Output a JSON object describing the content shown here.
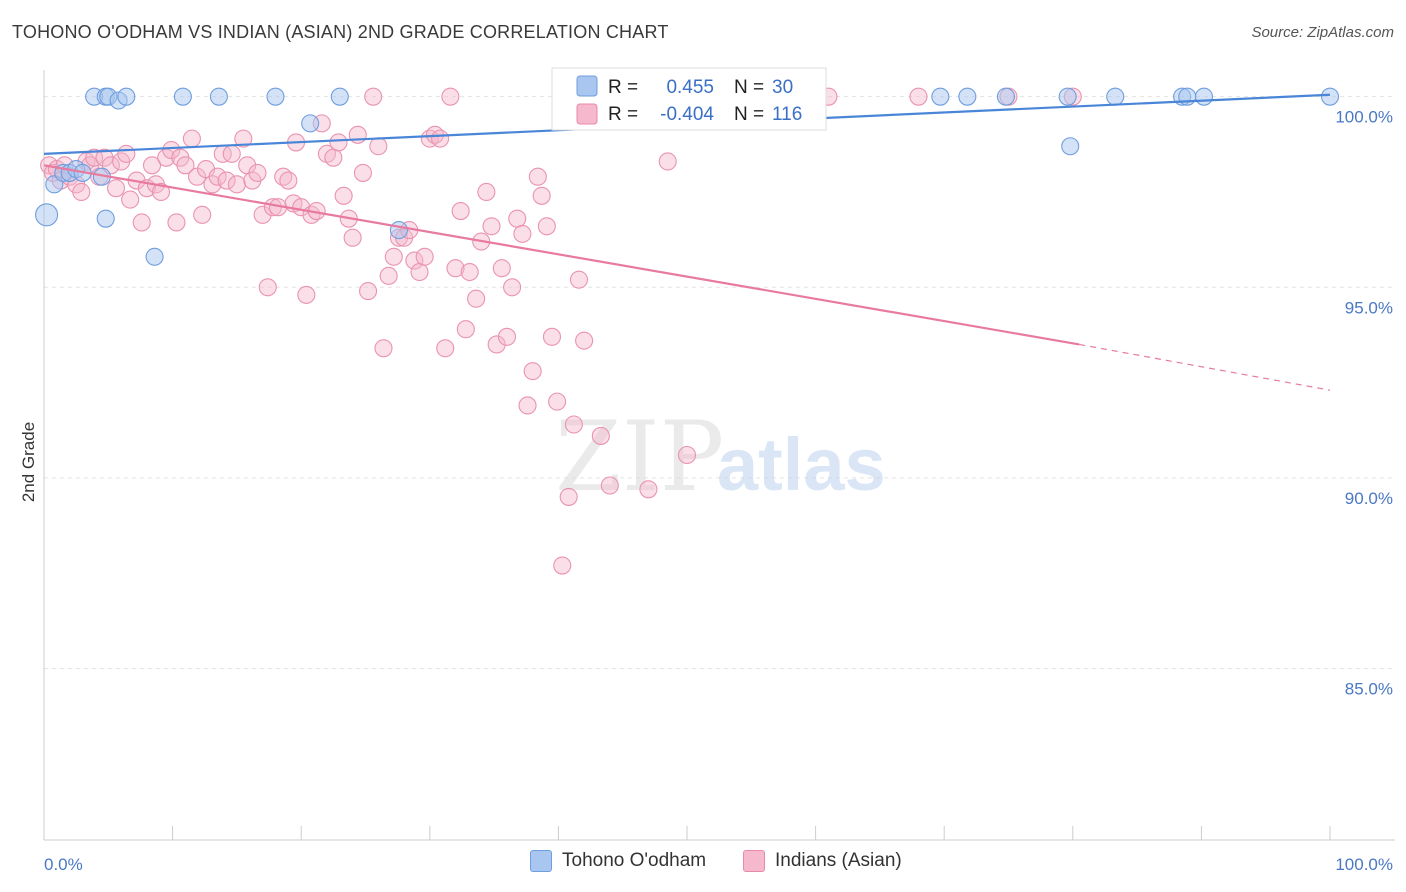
{
  "header": {
    "title": "TOHONO O'ODHAM VS INDIAN (ASIAN) 2ND GRADE CORRELATION CHART",
    "source": "Source: ZipAtlas.com"
  },
  "legend_box": {
    "rows": [
      {
        "r_label": "R =",
        "r_value": "0.455",
        "n_label": "N =",
        "n_value": "30"
      },
      {
        "r_label": "R =",
        "r_value": "-0.404",
        "n_label": "N =",
        "n_value": "116"
      }
    ]
  },
  "watermark": {
    "zip": "ZIP",
    "atlas": "atlas"
  },
  "bottom_legend": [
    {
      "label": "Tohono O'odham",
      "color": "#a8c6f0"
    },
    {
      "label": "Indians (Asian)",
      "color": "#f5b8cc"
    }
  ],
  "chart_data": {
    "type": "scatter",
    "title": "TOHONO O'ODHAM VS INDIAN (ASIAN) 2ND GRADE CORRELATION CHART",
    "xlabel": "",
    "ylabel": "2nd Grade",
    "xlim": [
      0,
      100
    ],
    "ylim": [
      80.5,
      100.7
    ],
    "x_ticks": [
      {
        "value": 0,
        "label": "0.0%"
      },
      {
        "value": 100,
        "label": "100.0%"
      }
    ],
    "y_ticks": [
      {
        "value": 100,
        "label": "100.0%"
      },
      {
        "value": 95,
        "label": "95.0%"
      },
      {
        "value": 90,
        "label": "90.0%"
      },
      {
        "value": 85,
        "label": "85.0%"
      }
    ],
    "grid": true,
    "colors": {
      "series1": "#4a86d8",
      "series2": "#e87aa0"
    },
    "series": [
      {
        "name": "Tohono O'odham",
        "r": 0.455,
        "n": 30,
        "trend": {
          "x": [
            0,
            100
          ],
          "y": [
            98.5,
            100.05
          ]
        },
        "points": [
          [
            0.2,
            96.9
          ],
          [
            0.8,
            97.7
          ],
          [
            1.5,
            98
          ],
          [
            2.0,
            98
          ],
          [
            2.5,
            98.1
          ],
          [
            3.0,
            98.0
          ],
          [
            4.5,
            97.9
          ],
          [
            4.8,
            96.8
          ],
          [
            3.9,
            100
          ],
          [
            4.8,
            100
          ],
          [
            5.0,
            100
          ],
          [
            5.8,
            99.9
          ],
          [
            6.4,
            100
          ],
          [
            8.6,
            95.8
          ],
          [
            10.8,
            100
          ],
          [
            13.6,
            100
          ],
          [
            18.0,
            100
          ],
          [
            20.7,
            99.3
          ],
          [
            23.0,
            100
          ],
          [
            27.6,
            96.5
          ],
          [
            69.7,
            100
          ],
          [
            71.8,
            100
          ],
          [
            74.8,
            100
          ],
          [
            79.6,
            100
          ],
          [
            79.8,
            98.7
          ],
          [
            83.3,
            100
          ],
          [
            88.5,
            100
          ],
          [
            88.9,
            100
          ],
          [
            90.2,
            100
          ],
          [
            100,
            100
          ]
        ]
      },
      {
        "name": "Indians (Asian)",
        "r": -0.404,
        "n": 116,
        "trend": {
          "x": [
            0,
            80.5
          ],
          "y": [
            98.2,
            93.5
          ],
          "dashed_to": {
            "x": 100,
            "y": 92.3
          }
        },
        "points": [
          [
            0.4,
            98.2
          ],
          [
            0.7,
            98.0
          ],
          [
            1.0,
            98.1
          ],
          [
            1.3,
            97.8
          ],
          [
            1.6,
            98.2
          ],
          [
            2.0,
            97.9
          ],
          [
            2.5,
            97.7
          ],
          [
            2.9,
            97.5
          ],
          [
            3.3,
            98.3
          ],
          [
            3.6,
            98.2
          ],
          [
            3.9,
            98.4
          ],
          [
            4.3,
            97.9
          ],
          [
            4.7,
            98.4
          ],
          [
            5.2,
            98.2
          ],
          [
            5.6,
            97.6
          ],
          [
            6.0,
            98.3
          ],
          [
            6.4,
            98.5
          ],
          [
            6.7,
            97.3
          ],
          [
            7.2,
            97.8
          ],
          [
            7.6,
            96.7
          ],
          [
            8.0,
            97.6
          ],
          [
            8.4,
            98.2
          ],
          [
            8.7,
            97.7
          ],
          [
            9.1,
            97.5
          ],
          [
            9.5,
            98.4
          ],
          [
            9.9,
            98.6
          ],
          [
            10.3,
            96.7
          ],
          [
            10.6,
            98.4
          ],
          [
            11.0,
            98.2
          ],
          [
            11.5,
            98.9
          ],
          [
            11.9,
            97.9
          ],
          [
            12.3,
            96.9
          ],
          [
            12.6,
            98.1
          ],
          [
            13.1,
            97.7
          ],
          [
            13.5,
            97.9
          ],
          [
            13.9,
            98.5
          ],
          [
            14.2,
            97.8
          ],
          [
            14.6,
            98.5
          ],
          [
            15.0,
            97.7
          ],
          [
            15.5,
            98.9
          ],
          [
            15.8,
            98.2
          ],
          [
            16.2,
            97.8
          ],
          [
            16.6,
            98.0
          ],
          [
            17.0,
            96.9
          ],
          [
            17.4,
            95.0
          ],
          [
            17.8,
            97.1
          ],
          [
            18.2,
            97.1
          ],
          [
            18.6,
            97.9
          ],
          [
            19.0,
            97.8
          ],
          [
            19.4,
            97.2
          ],
          [
            19.6,
            98.8
          ],
          [
            20.0,
            97.1
          ],
          [
            20.4,
            94.8
          ],
          [
            20.8,
            96.9
          ],
          [
            21.2,
            97.0
          ],
          [
            21.6,
            99.3
          ],
          [
            22.0,
            98.5
          ],
          [
            22.5,
            98.4
          ],
          [
            22.9,
            98.8
          ],
          [
            23.3,
            97.4
          ],
          [
            23.7,
            96.8
          ],
          [
            24.0,
            96.3
          ],
          [
            24.4,
            99.0
          ],
          [
            24.8,
            98.0
          ],
          [
            25.2,
            94.9
          ],
          [
            25.6,
            100
          ],
          [
            26.0,
            98.7
          ],
          [
            26.4,
            93.4
          ],
          [
            26.8,
            95.3
          ],
          [
            27.2,
            95.8
          ],
          [
            27.6,
            96.3
          ],
          [
            28.0,
            96.3
          ],
          [
            28.4,
            96.5
          ],
          [
            28.8,
            95.7
          ],
          [
            29.2,
            95.4
          ],
          [
            29.6,
            95.8
          ],
          [
            30.0,
            98.9
          ],
          [
            30.4,
            99.0
          ],
          [
            30.8,
            98.9
          ],
          [
            31.2,
            93.4
          ],
          [
            31.6,
            100
          ],
          [
            32.0,
            95.5
          ],
          [
            32.4,
            97.0
          ],
          [
            32.8,
            93.9
          ],
          [
            33.1,
            95.4
          ],
          [
            33.6,
            94.7
          ],
          [
            34.0,
            96.2
          ],
          [
            34.4,
            97.5
          ],
          [
            34.8,
            96.6
          ],
          [
            35.2,
            93.5
          ],
          [
            35.6,
            95.5
          ],
          [
            36.0,
            93.7
          ],
          [
            36.4,
            95.0
          ],
          [
            36.8,
            96.8
          ],
          [
            37.2,
            96.4
          ],
          [
            37.6,
            91.9
          ],
          [
            38.0,
            92.8
          ],
          [
            38.4,
            97.9
          ],
          [
            38.7,
            97.4
          ],
          [
            39.1,
            96.6
          ],
          [
            39.5,
            93.7
          ],
          [
            39.9,
            92.0
          ],
          [
            40.3,
            87.7
          ],
          [
            40.8,
            89.5
          ],
          [
            41.2,
            91.4
          ],
          [
            41.6,
            95.2
          ],
          [
            42.0,
            93.6
          ],
          [
            42.5,
            100
          ],
          [
            43.3,
            91.1
          ],
          [
            44.0,
            89.8
          ],
          [
            47.0,
            89.7
          ],
          [
            48.5,
            98.3
          ],
          [
            50.0,
            90.6
          ],
          [
            56.0,
            100
          ],
          [
            61.0,
            100
          ],
          [
            68.0,
            100
          ],
          [
            75.0,
            100
          ],
          [
            80.0,
            100
          ]
        ]
      }
    ]
  }
}
